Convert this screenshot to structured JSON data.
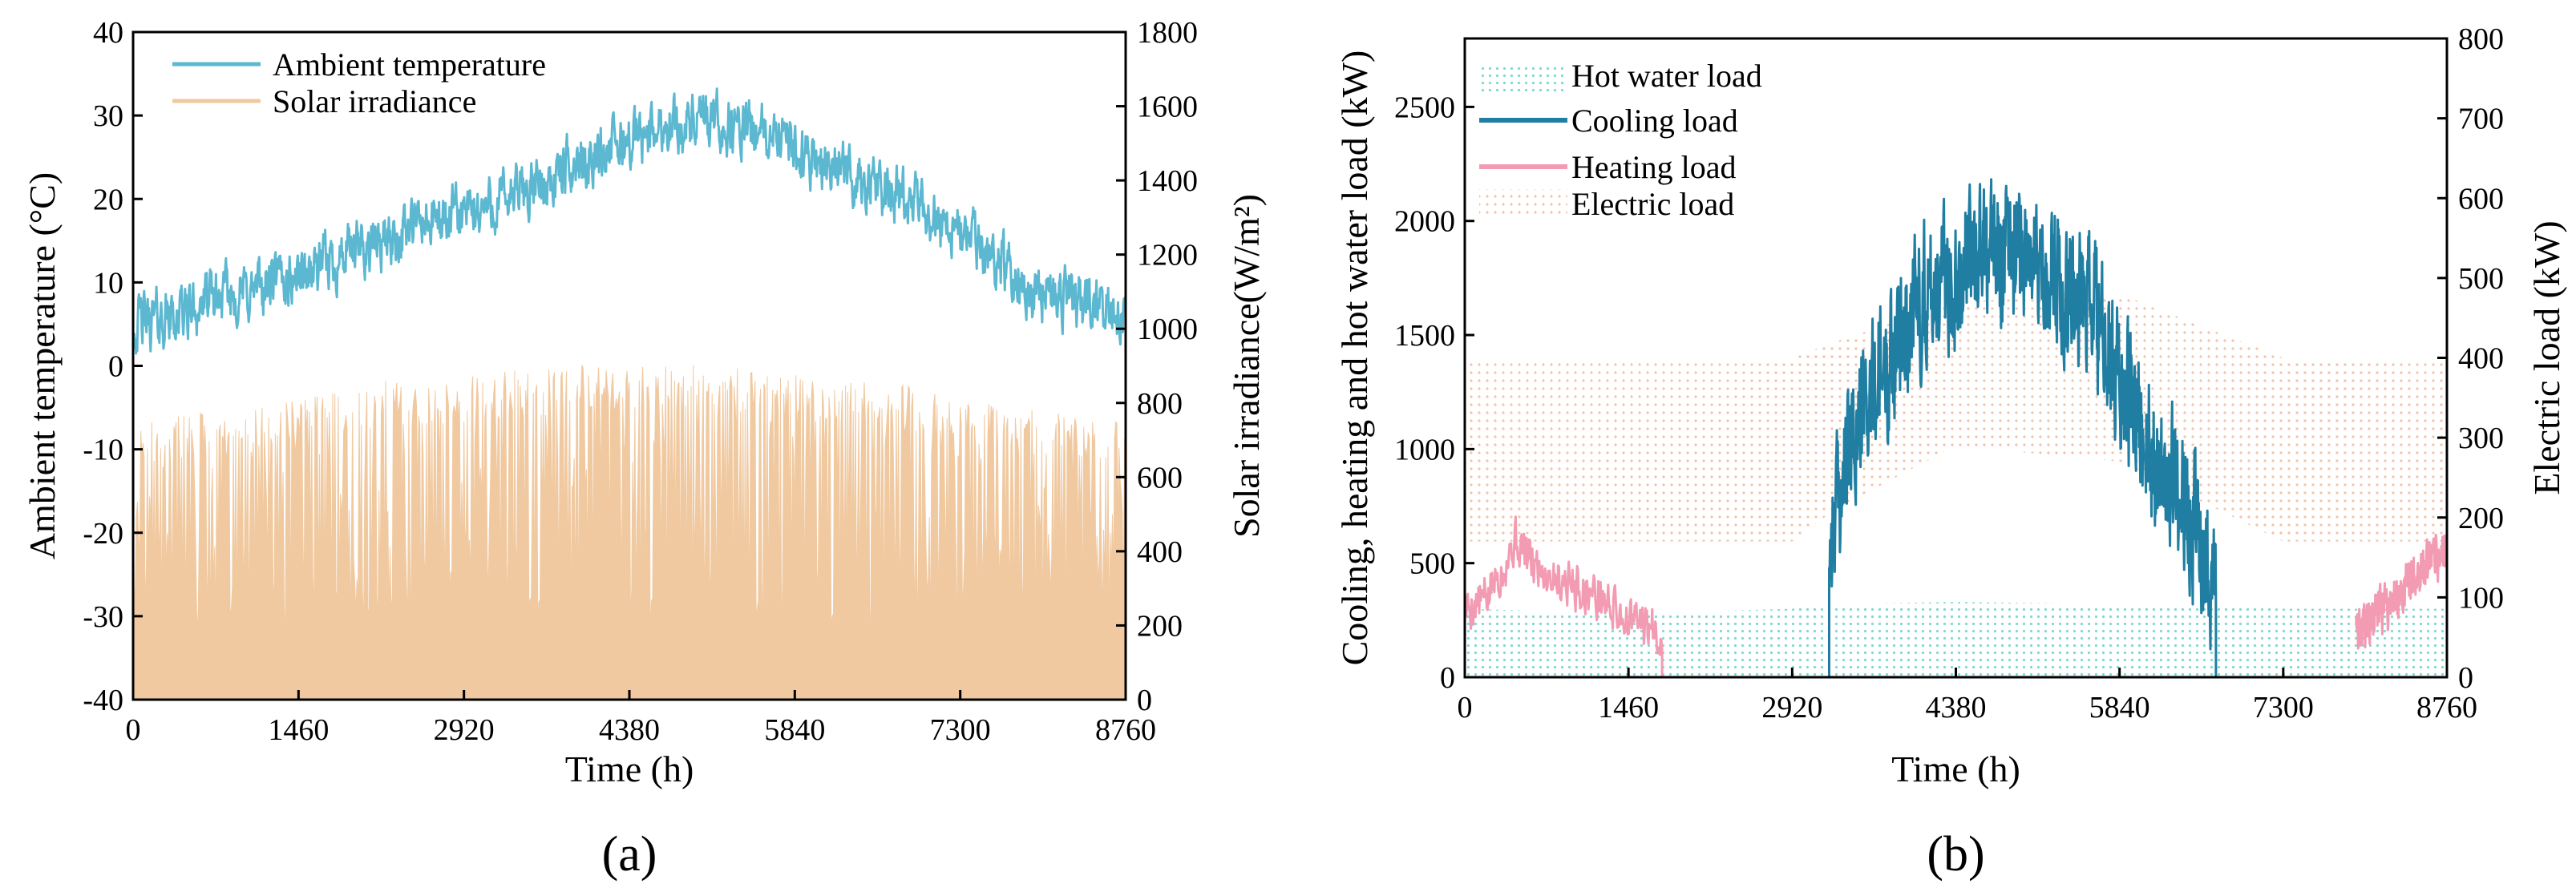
{
  "colors": {
    "ambient": "#5bb8d0",
    "solar": "#f0c9a0",
    "hot_water": "#7fd9d2",
    "cooling": "#1f7ea1",
    "heating": "#f29bb2",
    "electric": "#f3c2a8",
    "axis": "#000000"
  },
  "chart_data": [
    {
      "type": "line",
      "title": "",
      "caption": "(a)",
      "xlabel": "Time (h)",
      "ylabel": "Ambient temperature (°C)",
      "ylabel_right": "Solar irradiance(W/m²)",
      "xlim": [
        0,
        8760
      ],
      "ylim": [
        -40,
        40
      ],
      "ylim_right": [
        0,
        1800
      ],
      "x_ticks": [
        "0",
        "1460",
        "2920",
        "4380",
        "5840",
        "7300",
        "8760"
      ],
      "y_ticks": [
        "-40",
        "-30",
        "-20",
        "-10",
        "0",
        "10",
        "20",
        "30",
        "40"
      ],
      "y_ticks_right": [
        "0",
        "200",
        "400",
        "600",
        "800",
        "1000",
        "1200",
        "1400",
        "1600",
        "1800"
      ],
      "legend_position": "top-left",
      "series": [
        {
          "name": "Ambient temperature",
          "axis": "left",
          "style": "line",
          "x": [
            0,
            365,
            730,
            1095,
            1460,
            1825,
            2190,
            2555,
            2920,
            3285,
            3650,
            4015,
            4380,
            4745,
            5110,
            5475,
            5840,
            6205,
            6570,
            6935,
            7300,
            7665,
            8030,
            8395,
            8760
          ],
          "values": [
            5,
            6,
            8,
            9,
            11,
            13,
            15,
            17,
            18,
            20,
            22,
            25,
            27,
            29,
            29,
            28,
            26,
            24,
            21,
            19,
            16,
            12,
            9,
            7,
            6
          ],
          "noise_amplitude": 6
        },
        {
          "name": "Solar irradiance",
          "axis": "right",
          "style": "area",
          "x": [
            0,
            730,
            1460,
            2190,
            2920,
            3650,
            4380,
            5110,
            5840,
            6570,
            7300,
            8030,
            8760
          ],
          "values": [
            750,
            780,
            820,
            860,
            880,
            900,
            910,
            900,
            880,
            860,
            820,
            780,
            750
          ],
          "peak_range": [
            200,
            960
          ]
        }
      ]
    },
    {
      "type": "line",
      "title": "",
      "caption": "(b)",
      "xlabel": "Time (h)",
      "ylabel": "Cooling, heating and hot water load (kW)",
      "ylabel_right": "Electric load (kW)",
      "xlim": [
        0,
        8760
      ],
      "ylim": [
        0,
        2800
      ],
      "ylim_right": [
        0,
        800
      ],
      "x_ticks": [
        "0",
        "1460",
        "2920",
        "4380",
        "5840",
        "7300",
        "8760"
      ],
      "y_ticks": [
        "0",
        "500",
        "1000",
        "1500",
        "2000",
        "2500"
      ],
      "y_ticks_right": [
        "0",
        "100",
        "200",
        "300",
        "400",
        "500",
        "600",
        "700",
        "800"
      ],
      "legend_position": "top-left",
      "series": [
        {
          "name": "Hot water load",
          "axis": "left",
          "style": "dotted-area",
          "x": [
            0,
            1460,
            2920,
            3300,
            4380,
            5840,
            7300,
            8760
          ],
          "values": [
            300,
            280,
            300,
            320,
            330,
            320,
            300,
            300
          ]
        },
        {
          "name": "Cooling load",
          "axis": "left",
          "style": "line",
          "x": [
            3250,
            3500,
            3800,
            4100,
            4380,
            4700,
            5000,
            5300,
            5600,
            5840,
            6100,
            6400,
            6700
          ],
          "values": [
            600,
            1100,
            1400,
            1700,
            1800,
            1900,
            1850,
            1750,
            1600,
            1300,
            1000,
            800,
            400
          ],
          "noise_amplitude": 450
        },
        {
          "name": "Heating load",
          "axis": "left",
          "style": "line",
          "x": [
            0,
            200,
            450,
            600,
            800,
            1000,
            1200,
            1460,
            1760,
            7950,
            8200,
            8500,
            8760
          ],
          "values": [
            300,
            350,
            600,
            500,
            450,
            400,
            350,
            250,
            200,
            200,
            300,
            450,
            550
          ],
          "noise_amplitude": 150
        },
        {
          "name": "Electric load",
          "axis": "right",
          "style": "dotted-band",
          "x": [
            0,
            1460,
            2920,
            3300,
            4380,
            5840,
            7300,
            8760
          ],
          "upper": [
            400,
            400,
            400,
            420,
            470,
            480,
            400,
            400
          ],
          "lower": [
            170,
            170,
            170,
            210,
            290,
            270,
            170,
            170
          ]
        }
      ]
    }
  ]
}
